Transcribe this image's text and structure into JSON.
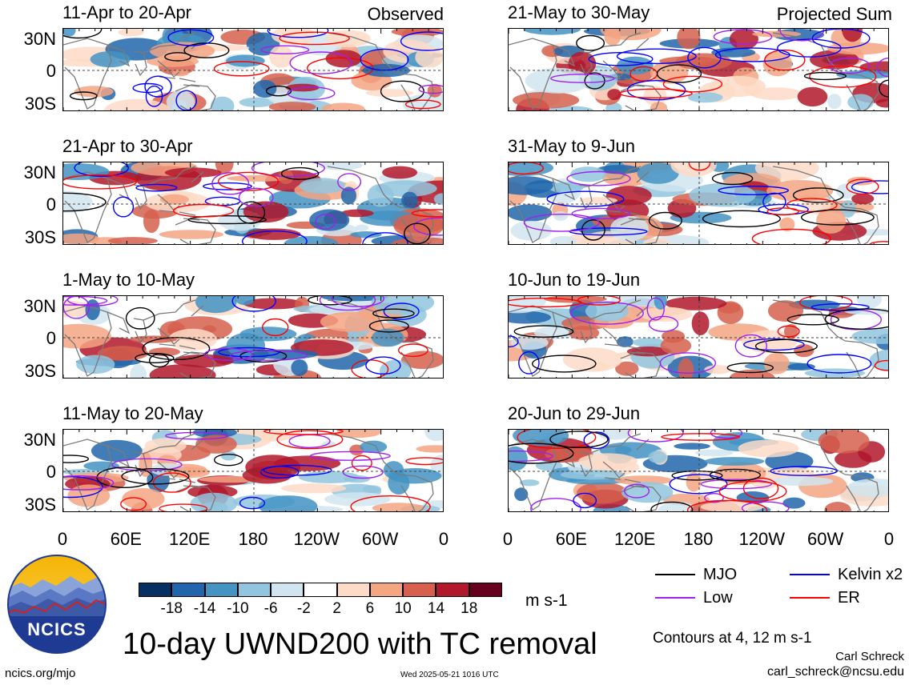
{
  "panels": [
    {
      "title": "11-Apr to 20-Apr",
      "tag": "Observed"
    },
    {
      "title": "21-May to 30-May",
      "tag": "Projected Sum"
    },
    {
      "title": "21-Apr to 30-Apr",
      "tag": ""
    },
    {
      "title": "31-May to 9-Jun",
      "tag": ""
    },
    {
      "title": "1-May to 10-May",
      "tag": ""
    },
    {
      "title": "10-Jun to 19-Jun",
      "tag": ""
    },
    {
      "title": "11-May to 20-May",
      "tag": ""
    },
    {
      "title": "20-Jun to 29-Jun",
      "tag": ""
    }
  ],
  "lat_labels": [
    "30N",
    "0",
    "30S"
  ],
  "lon_labels": [
    "0",
    "60E",
    "120E",
    "180",
    "120W",
    "60W",
    "0"
  ],
  "colorbar": {
    "ticks": [
      "-18",
      "-14",
      "-10",
      "-6",
      "-2",
      "2",
      "6",
      "10",
      "14",
      "18"
    ],
    "units": "m s-1",
    "colors": [
      "#053061",
      "#2166ac",
      "#4393c3",
      "#92c5de",
      "#d1e5f0",
      "#ffffff",
      "#fddbc7",
      "#f4a582",
      "#d6604d",
      "#b2182b",
      "#67001f"
    ]
  },
  "legend": [
    {
      "label": "MJO",
      "color": "#000000"
    },
    {
      "label": "Kelvin x2",
      "color": "#0000ff"
    },
    {
      "label": "Low",
      "color": "#a020f0"
    },
    {
      "label": "ER",
      "color": "#ff0000"
    }
  ],
  "logo_text": "NCICS",
  "main_title": "10-day UWND200 with TC removal",
  "contour_note": "Contours at 4, 12 m s-1",
  "author": "Carl Schreck",
  "email": "carl_schreck@ncsu.edu",
  "website": "ncics.org/mjo",
  "timestamp": "Wed 2025-05-21 1016 UTC"
}
